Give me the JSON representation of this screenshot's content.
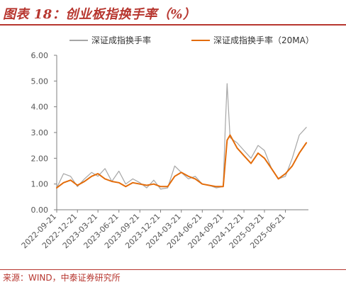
{
  "header": {
    "title": "图表 18：创业板指换手率（%）"
  },
  "footer": {
    "source": "来源：WIND，中泰证券研究所"
  },
  "chart_data": {
    "type": "line",
    "title": "图表 18：创业板指换手率（%）",
    "xlabel": "",
    "ylabel": "",
    "ylim": [
      0,
      6
    ],
    "yticks": [
      "0.00",
      "1.00",
      "2.00",
      "3.00",
      "4.00",
      "5.00",
      "6.00"
    ],
    "xticks": [
      "2022-09-21",
      "2022-12-21",
      "2023-03-21",
      "2023-06-21",
      "2023-09-21",
      "2023-12-21",
      "2024-03-21",
      "2024-06-21",
      "2024-09-21",
      "2024-12-21",
      "2025-03-21",
      "2025-06-21"
    ],
    "legend_position": "top",
    "grid": false,
    "series": [
      {
        "name": "深证成指换手率",
        "color": "#a6a6a6",
        "x": [
          "2022-09-21",
          "2022-10-21",
          "2022-11-21",
          "2022-12-21",
          "2023-01-21",
          "2023-02-21",
          "2023-03-21",
          "2023-04-21",
          "2023-05-21",
          "2023-06-21",
          "2023-07-21",
          "2023-08-21",
          "2023-09-21",
          "2023-10-21",
          "2023-11-21",
          "2023-12-21",
          "2024-01-21",
          "2024-02-21",
          "2024-03-21",
          "2024-04-21",
          "2024-05-21",
          "2024-06-21",
          "2024-07-21",
          "2024-08-21",
          "2024-09-21",
          "2024-09-30",
          "2024-10-08",
          "2024-10-21",
          "2024-11-21",
          "2024-12-21",
          "2025-01-21",
          "2025-02-21",
          "2025-03-21",
          "2025-04-21",
          "2025-05-21",
          "2025-06-21",
          "2025-07-21",
          "2025-08-21",
          "2025-09-21"
        ],
        "values": [
          0.85,
          1.4,
          1.3,
          0.9,
          1.2,
          1.45,
          1.3,
          1.6,
          1.1,
          1.5,
          1.0,
          1.2,
          1.05,
          0.85,
          1.15,
          0.8,
          0.85,
          1.7,
          1.45,
          1.2,
          1.3,
          1.0,
          0.95,
          0.85,
          0.9,
          3.2,
          4.9,
          2.8,
          2.6,
          2.3,
          2.0,
          2.5,
          2.3,
          1.6,
          1.2,
          1.3,
          2.0,
          2.9,
          3.2
        ]
      },
      {
        "name": "深证成指换手率（20MA）",
        "color": "#e36c0a",
        "x": [
          "2022-09-21",
          "2022-10-21",
          "2022-11-21",
          "2022-12-21",
          "2023-01-21",
          "2023-02-21",
          "2023-03-21",
          "2023-04-21",
          "2023-05-21",
          "2023-06-21",
          "2023-07-21",
          "2023-08-21",
          "2023-09-21",
          "2023-10-21",
          "2023-11-21",
          "2023-12-21",
          "2024-01-21",
          "2024-02-21",
          "2024-03-21",
          "2024-04-21",
          "2024-05-21",
          "2024-06-21",
          "2024-07-21",
          "2024-08-21",
          "2024-09-21",
          "2024-10-08",
          "2024-10-21",
          "2024-11-21",
          "2024-12-21",
          "2025-01-21",
          "2025-02-21",
          "2025-03-21",
          "2025-04-21",
          "2025-05-21",
          "2025-06-21",
          "2025-07-21",
          "2025-08-21",
          "2025-09-21"
        ],
        "values": [
          0.85,
          1.05,
          1.15,
          0.95,
          1.1,
          1.3,
          1.4,
          1.2,
          1.1,
          1.05,
          0.9,
          1.05,
          1.0,
          0.95,
          1.0,
          0.9,
          0.9,
          1.3,
          1.45,
          1.3,
          1.2,
          1.0,
          0.95,
          0.9,
          0.9,
          2.7,
          2.9,
          2.4,
          2.1,
          1.8,
          2.2,
          2.0,
          1.6,
          1.2,
          1.4,
          1.7,
          2.2,
          2.6
        ]
      }
    ]
  }
}
